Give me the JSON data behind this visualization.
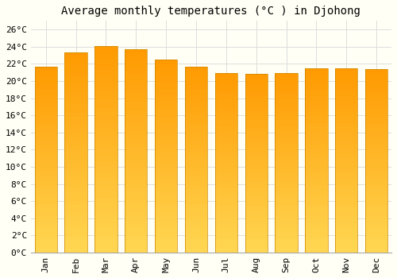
{
  "title": "Average monthly temperatures (°C ) in Djohong",
  "months": [
    "Jan",
    "Feb",
    "Mar",
    "Apr",
    "May",
    "Jun",
    "Jul",
    "Aug",
    "Sep",
    "Oct",
    "Nov",
    "Dec"
  ],
  "values": [
    21.7,
    23.3,
    24.1,
    23.7,
    22.5,
    21.7,
    20.9,
    20.8,
    20.9,
    21.5,
    21.5,
    21.4
  ],
  "bar_color_top": "#FFA500",
  "bar_color_bottom": "#FFD580",
  "bar_edge_color": "#CC8800",
  "background_color": "#FFFFF5",
  "grid_color": "#dddddd",
  "ylim": [
    0,
    27
  ],
  "ytick_step": 2,
  "title_fontsize": 10,
  "tick_fontsize": 8,
  "font_family": "monospace"
}
